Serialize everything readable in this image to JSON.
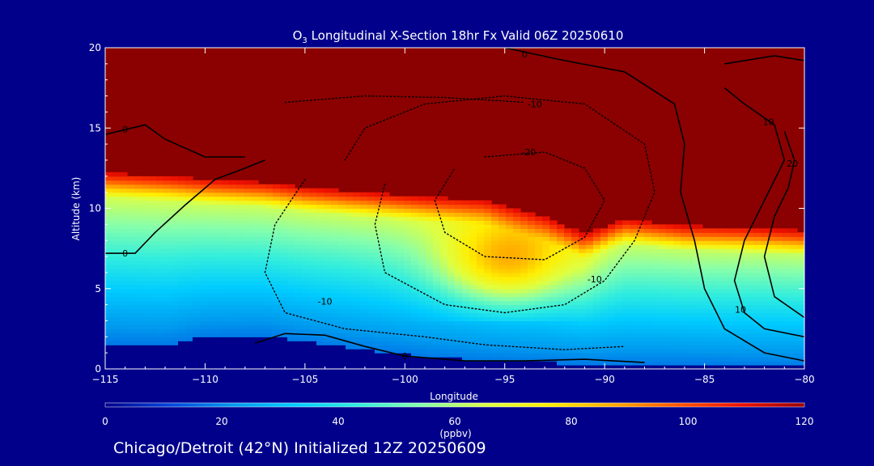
{
  "chart_data": {
    "type": "heatmap",
    "title_main": "O",
    "title_sub": "3",
    "title_rest": " Longitudinal X-Section 18hr  Fx Valid 06Z 20250610",
    "xlabel": "Longitude",
    "ylabel": "Altitude (km)",
    "xlim": [
      -115,
      -80
    ],
    "ylim": [
      0,
      20
    ],
    "x_ticks": [
      -115,
      -110,
      -105,
      -100,
      -95,
      -90,
      -85,
      -80
    ],
    "x_tick_labels": [
      "−115",
      "−110",
      "−105",
      "−100",
      "−95",
      "−90",
      "−85",
      "−80"
    ],
    "y_ticks": [
      0,
      5,
      10,
      15,
      20
    ],
    "y_tick_labels": [
      "0",
      "5",
      "10",
      "15",
      "20"
    ],
    "colorbar": {
      "label": "(ppbv)",
      "range": [
        0,
        120
      ],
      "ticks": [
        0,
        20,
        40,
        60,
        80,
        100,
        120
      ],
      "tick_labels": [
        "0",
        "20",
        "40",
        "60",
        "80",
        "100",
        "120"
      ],
      "colors": [
        "#00008b",
        "#0044dd",
        "#0099ee",
        "#00ccff",
        "#33eedd",
        "#88ffaa",
        "#ddff44",
        "#ffee00",
        "#ffaa00",
        "#ff5500",
        "#ee1100",
        "#990000"
      ]
    },
    "field": {
      "columns": [
        {
          "x": -115,
          "tropopause": 12.2,
          "surface": 1.6
        },
        {
          "x": -112,
          "tropopause": 12.0,
          "surface": 1.5
        },
        {
          "x": -110,
          "tropopause": 11.8,
          "surface": 2.0
        },
        {
          "x": -107,
          "tropopause": 11.6,
          "surface": 2.1
        },
        {
          "x": -105,
          "tropopause": 11.3,
          "surface": 1.7
        },
        {
          "x": -102,
          "tropopause": 11.0,
          "surface": 1.2
        },
        {
          "x": -99,
          "tropopause": 10.7,
          "surface": 0.8
        },
        {
          "x": -96,
          "tropopause": 10.5,
          "surface": 0.5
        },
        {
          "x": -93,
          "tropopause": 9.5,
          "surface": 0.4
        },
        {
          "x": -91,
          "tropopause": 8.4,
          "surface": 0.3
        },
        {
          "x": -89,
          "tropopause": 9.3,
          "surface": 0.3
        },
        {
          "x": -86,
          "tropopause": 8.9,
          "surface": 0.3
        },
        {
          "x": -83,
          "tropopause": 8.8,
          "surface": 0.2
        },
        {
          "x": -80,
          "tropopause": 8.6,
          "surface": 0.2
        }
      ],
      "ridge": {
        "x": -95,
        "y": 6.5,
        "value": 100
      }
    },
    "contours": [
      {
        "value": "0",
        "style": "solid",
        "points": [
          [
            -115,
            7.2
          ],
          [
            -113.5,
            7.2
          ],
          [
            -112.5,
            8.5
          ],
          [
            -111,
            10.2
          ],
          [
            -109.5,
            11.8
          ],
          [
            -108,
            12.5
          ],
          [
            -107,
            13
          ]
        ],
        "label_at": [
          -114,
          7.2
        ]
      },
      {
        "value": "0",
        "style": "solid",
        "points": [
          [
            -115,
            14.6
          ],
          [
            -113,
            15.2
          ],
          [
            -112,
            14.3
          ],
          [
            -110,
            13.2
          ],
          [
            -108,
            13.2
          ]
        ],
        "label_at": [
          -114,
          14.9
        ]
      },
      {
        "value": "0",
        "style": "solid",
        "points": [
          [
            -107.5,
            1.6
          ],
          [
            -106,
            2.2
          ],
          [
            -104,
            2.1
          ],
          [
            -102,
            1.4
          ],
          [
            -100,
            0.8
          ],
          [
            -97,
            0.5
          ],
          [
            -94,
            0.5
          ],
          [
            -91,
            0.6
          ],
          [
            -88,
            0.4
          ]
        ],
        "label_at": [
          -100,
          0.8
        ]
      },
      {
        "value": "0",
        "style": "solid",
        "points": [
          [
            -95,
            20
          ],
          [
            -92,
            19.2
          ],
          [
            -89,
            18.5
          ],
          [
            -86.5,
            16.5
          ],
          [
            -86,
            14
          ],
          [
            -86.2,
            11
          ],
          [
            -85.5,
            8
          ],
          [
            -85,
            5
          ],
          [
            -84,
            2.5
          ],
          [
            -82,
            1
          ],
          [
            -80,
            0.5
          ]
        ],
        "label_at": [
          -94,
          19.6
        ]
      },
      {
        "value": "-10",
        "style": "dotted",
        "points": [
          [
            -105,
            11.8
          ],
          [
            -106.5,
            9
          ],
          [
            -107,
            6
          ],
          [
            -106,
            3.5
          ],
          [
            -103,
            2.5
          ],
          [
            -99,
            2
          ],
          [
            -96,
            1.5
          ],
          [
            -92,
            1.2
          ],
          [
            -89,
            1.4
          ]
        ],
        "label_at": [
          -104,
          4.2
        ]
      },
      {
        "value": "-10",
        "style": "dotted",
        "points": [
          [
            -101,
            11.5
          ],
          [
            -101.5,
            9
          ],
          [
            -101,
            6
          ],
          [
            -98,
            4
          ],
          [
            -95,
            3.5
          ],
          [
            -92,
            4
          ],
          [
            -90,
            5.5
          ],
          [
            -88.5,
            8
          ],
          [
            -87.5,
            11
          ],
          [
            -88,
            14
          ],
          [
            -91,
            16.5
          ],
          [
            -95,
            17
          ],
          [
            -99,
            16.5
          ],
          [
            -102,
            15
          ],
          [
            -103,
            13
          ]
        ],
        "label_at": [
          -90.5,
          5.6
        ]
      },
      {
        "value": "-10",
        "style": "dotted",
        "points": [
          [
            -106,
            16.6
          ],
          [
            -102,
            17
          ],
          [
            -98,
            16.9
          ],
          [
            -94,
            16.6
          ]
        ],
        "label_at": [
          -93.5,
          16.5
        ]
      },
      {
        "value": "-20",
        "style": "dotted",
        "points": [
          [
            -96,
            13.2
          ],
          [
            -93,
            13.5
          ],
          [
            -91,
            12.5
          ],
          [
            -90,
            10.5
          ],
          [
            -91,
            8.2
          ],
          [
            -93,
            6.8
          ],
          [
            -96,
            7
          ],
          [
            -98,
            8.5
          ],
          [
            -98.5,
            10.5
          ],
          [
            -97.5,
            12.5
          ]
        ],
        "label_at": [
          -93.8,
          13.5
        ]
      },
      {
        "value": "10",
        "style": "solid",
        "points": [
          [
            -84,
            17.5
          ],
          [
            -83,
            16.5
          ],
          [
            -81.5,
            15.2
          ],
          [
            -81,
            13
          ],
          [
            -82,
            10.5
          ],
          [
            -83,
            8
          ],
          [
            -83.5,
            5.5
          ],
          [
            -83,
            3.5
          ],
          [
            -82,
            2.5
          ],
          [
            -80,
            2
          ]
        ],
        "label_at": [
          -83.2,
          3.7
        ]
      },
      {
        "value": "10",
        "style": "solid",
        "points": [
          [
            -84,
            19
          ],
          [
            -81.5,
            19.5
          ],
          [
            -80,
            19.2
          ]
        ],
        "label_at": [
          -81.8,
          15.4
        ]
      },
      {
        "value": "20",
        "style": "solid",
        "points": [
          [
            -81,
            14.8
          ],
          [
            -80.5,
            13
          ],
          [
            -80.8,
            11.3
          ],
          [
            -81.5,
            9.5
          ],
          [
            -82,
            7
          ],
          [
            -81.5,
            4.5
          ],
          [
            -80,
            3.2
          ]
        ],
        "label_at": [
          -80.6,
          12.8
        ]
      }
    ]
  },
  "footer": {
    "text": "Chicago/Detroit (42°N) Initialized 12Z 20250609"
  }
}
